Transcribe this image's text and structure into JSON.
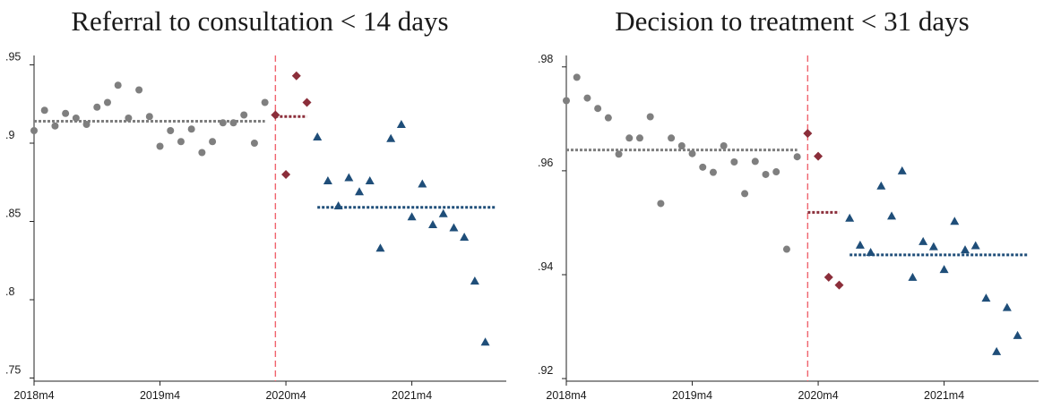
{
  "chart_data": [
    {
      "type": "scatter",
      "title": "Referral to consultation < 14 days",
      "x_ticks": [
        "2018m4",
        "2019m4",
        "2020m4",
        "2021m4"
      ],
      "x_tick_values": [
        "2018-04",
        "2019-04",
        "2020-04",
        "2021-04"
      ],
      "xlim": [
        "2018-04",
        "2022-01"
      ],
      "y_ticks": [
        ".75",
        ".8",
        ".85",
        ".9",
        ".95"
      ],
      "y_tick_values": [
        0.75,
        0.8,
        0.85,
        0.9,
        0.95
      ],
      "ylim": [
        0.748,
        0.956
      ],
      "cutoff": "2020-03",
      "grid": false,
      "legend": "none",
      "series": [
        {
          "marker": "circle",
          "color": "#7f7f7f",
          "points": [
            [
              "2018-04",
              0.908
            ],
            [
              "2018-05",
              0.921
            ],
            [
              "2018-06",
              0.911
            ],
            [
              "2018-07",
              0.919
            ],
            [
              "2018-08",
              0.916
            ],
            [
              "2018-09",
              0.912
            ],
            [
              "2018-10",
              0.923
            ],
            [
              "2018-11",
              0.926
            ],
            [
              "2018-12",
              0.937
            ],
            [
              "2019-01",
              0.916
            ],
            [
              "2019-02",
              0.934
            ],
            [
              "2019-03",
              0.917
            ],
            [
              "2019-04",
              0.898
            ],
            [
              "2019-05",
              0.908
            ],
            [
              "2019-06",
              0.901
            ],
            [
              "2019-07",
              0.909
            ],
            [
              "2019-08",
              0.894
            ],
            [
              "2019-09",
              0.901
            ],
            [
              "2019-10",
              0.913
            ],
            [
              "2019-11",
              0.913
            ],
            [
              "2019-12",
              0.918
            ],
            [
              "2020-01",
              0.9
            ],
            [
              "2020-02",
              0.926
            ]
          ]
        },
        {
          "marker": "diamond",
          "color": "#8b2e3a",
          "points": [
            [
              "2020-03",
              0.918
            ],
            [
              "2020-04",
              0.88
            ],
            [
              "2020-05",
              0.943
            ],
            [
              "2020-06",
              0.926
            ]
          ]
        },
        {
          "marker": "triangle",
          "color": "#1f4e79",
          "points": [
            [
              "2020-07",
              0.904
            ],
            [
              "2020-08",
              0.876
            ],
            [
              "2020-09",
              0.86
            ],
            [
              "2020-10",
              0.878
            ],
            [
              "2020-11",
              0.869
            ],
            [
              "2020-12",
              0.876
            ],
            [
              "2021-01",
              0.833
            ],
            [
              "2021-02",
              0.903
            ],
            [
              "2021-03",
              0.912
            ],
            [
              "2021-04",
              0.853
            ],
            [
              "2021-05",
              0.874
            ],
            [
              "2021-06",
              0.848
            ],
            [
              "2021-07",
              0.855
            ],
            [
              "2021-08",
              0.846
            ],
            [
              "2021-09",
              0.84
            ],
            [
              "2021-10",
              0.812
            ],
            [
              "2021-11",
              0.773
            ]
          ]
        }
      ],
      "mean_lines": [
        {
          "color": "#7f7f7f",
          "from": "2018-04",
          "to": "2020-02",
          "y": 0.914
        },
        {
          "color": "#8b2e3a",
          "from": "2020-03",
          "to": "2020-06",
          "y": 0.917
        },
        {
          "color": "#1f4e79",
          "from": "2020-07",
          "to": "2021-12",
          "y": 0.859
        }
      ]
    },
    {
      "type": "scatter",
      "title": "Decision to treatment < 31 days",
      "x_ticks": [
        "2018m4",
        "2019m4",
        "2020m4",
        "2021m4"
      ],
      "x_tick_values": [
        "2018-04",
        "2019-04",
        "2020-04",
        "2021-04"
      ],
      "xlim": [
        "2018-04",
        "2022-01"
      ],
      "y_ticks": [
        ".92",
        ".94",
        ".96",
        ".98"
      ],
      "y_tick_values": [
        0.92,
        0.94,
        0.96,
        0.98
      ],
      "ylim": [
        0.9195,
        0.9822
      ],
      "cutoff": "2020-03",
      "grid": false,
      "legend": "none",
      "series": [
        {
          "marker": "circle",
          "color": "#7f7f7f",
          "points": [
            [
              "2018-04",
              0.9735
            ],
            [
              "2018-05",
              0.978
            ],
            [
              "2018-06",
              0.974
            ],
            [
              "2018-07",
              0.972
            ],
            [
              "2018-08",
              0.9702
            ],
            [
              "2018-09",
              0.9632
            ],
            [
              "2018-10",
              0.9663
            ],
            [
              "2018-11",
              0.9663
            ],
            [
              "2018-12",
              0.9704
            ],
            [
              "2019-01",
              0.9537
            ],
            [
              "2019-02",
              0.9663
            ],
            [
              "2019-03",
              0.9648
            ],
            [
              "2019-04",
              0.9633
            ],
            [
              "2019-05",
              0.9607
            ],
            [
              "2019-06",
              0.9597
            ],
            [
              "2019-07",
              0.9648
            ],
            [
              "2019-08",
              0.9617
            ],
            [
              "2019-09",
              0.9556
            ],
            [
              "2019-10",
              0.9618
            ],
            [
              "2019-11",
              0.9593
            ],
            [
              "2019-12",
              0.9598
            ],
            [
              "2020-01",
              0.9449
            ],
            [
              "2020-02",
              0.9627
            ]
          ]
        },
        {
          "marker": "diamond",
          "color": "#8b2e3a",
          "points": [
            [
              "2020-03",
              0.9672
            ],
            [
              "2020-04",
              0.9628
            ],
            [
              "2020-05",
              0.9395
            ],
            [
              "2020-06",
              0.938
            ]
          ]
        },
        {
          "marker": "triangle",
          "color": "#1f4e79",
          "points": [
            [
              "2020-07",
              0.9509
            ],
            [
              "2020-08",
              0.9457
            ],
            [
              "2020-09",
              0.9443
            ],
            [
              "2020-10",
              0.9571
            ],
            [
              "2020-11",
              0.9513
            ],
            [
              "2020-12",
              0.96
            ],
            [
              "2021-01",
              0.9395
            ],
            [
              "2021-02",
              0.9464
            ],
            [
              "2021-03",
              0.9454
            ],
            [
              "2021-04",
              0.941
            ],
            [
              "2021-05",
              0.9503
            ],
            [
              "2021-06",
              0.9448
            ],
            [
              "2021-07",
              0.9456
            ],
            [
              "2021-08",
              0.9355
            ],
            [
              "2021-09",
              0.9252
            ],
            [
              "2021-10",
              0.9337
            ],
            [
              "2021-11",
              0.9283
            ]
          ]
        }
      ],
      "mean_lines": [
        {
          "color": "#7f7f7f",
          "from": "2018-04",
          "to": "2020-02",
          "y": 0.964
        },
        {
          "color": "#8b2e3a",
          "from": "2020-03",
          "to": "2020-06",
          "y": 0.952
        },
        {
          "color": "#1f4e79",
          "from": "2020-07",
          "to": "2021-12",
          "y": 0.9438
        }
      ]
    }
  ],
  "cutoff_color": "#f0646e"
}
